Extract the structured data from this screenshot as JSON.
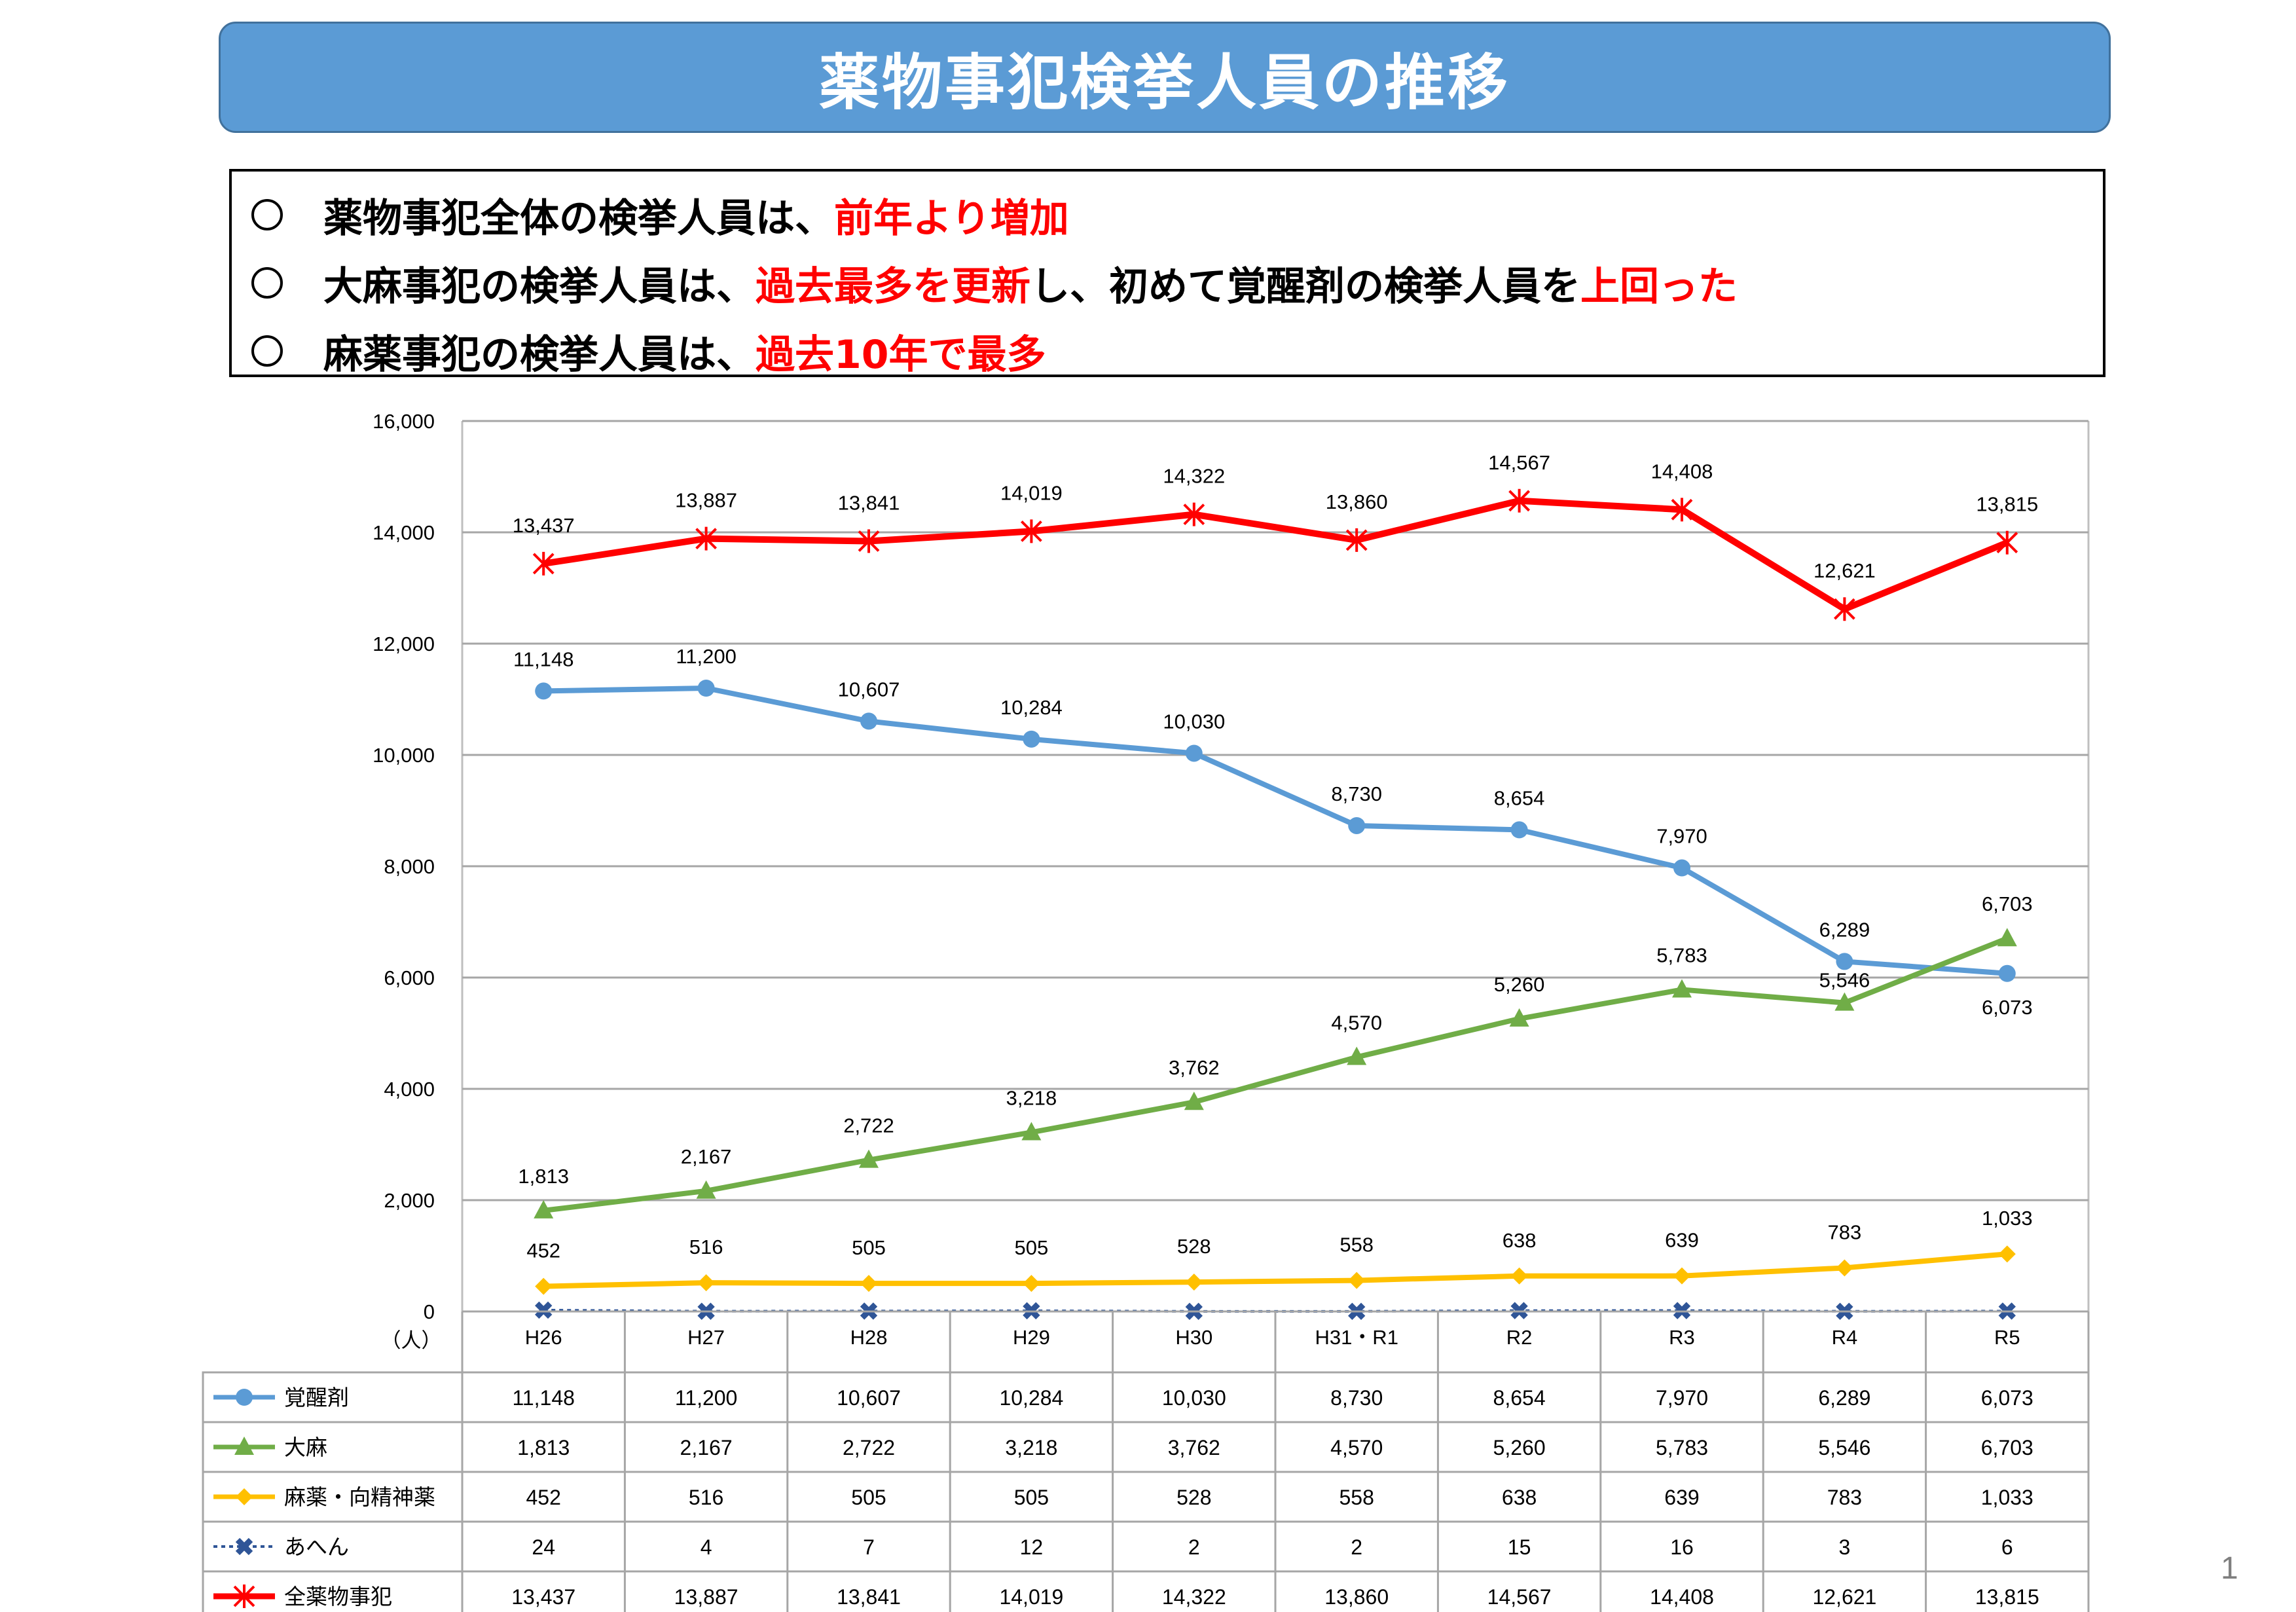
{
  "title": "薬物事犯検挙人員の推移",
  "summary": [
    {
      "parts": [
        {
          "text": "薬物事犯全体の検挙人員は、",
          "emph": false
        },
        {
          "text": "前年より増加",
          "emph": true
        }
      ]
    },
    {
      "parts": [
        {
          "text": "大麻事犯の検挙人員は、",
          "emph": false
        },
        {
          "text": "過去最多を更新",
          "emph": true
        },
        {
          "text": "し、初めて覚醒剤の検挙人員を",
          "emph": false
        },
        {
          "text": "上回った",
          "emph": true
        }
      ]
    },
    {
      "parts": [
        {
          "text": "麻薬事犯の検挙人員は、",
          "emph": false
        },
        {
          "text": "過去10年で最多",
          "emph": true
        }
      ]
    }
  ],
  "page_number": "1",
  "colors": {
    "banner": "#5b9bd5",
    "emphasis": "#ff0000"
  },
  "chart_data": {
    "type": "line",
    "title": "",
    "xlabel": "",
    "ylabel": "（人）",
    "ylim": [
      0,
      16000
    ],
    "yticks": [
      0,
      2000,
      4000,
      6000,
      8000,
      10000,
      12000,
      14000,
      16000
    ],
    "ytick_labels": [
      "0",
      "2,000",
      "4,000",
      "6,000",
      "8,000",
      "10,000",
      "12,000",
      "14,000",
      "16,000"
    ],
    "grid": true,
    "legend": "data-table-left",
    "categories": [
      "H26",
      "H27",
      "H28",
      "H29",
      "H30",
      "H31・R1",
      "R2",
      "R3",
      "R4",
      "R5"
    ],
    "series": [
      {
        "name": "覚醒剤",
        "color": "#5b9bd5",
        "marker": "circle",
        "dash": false,
        "values": [
          11148,
          11200,
          10607,
          10284,
          10030,
          8730,
          8654,
          7970,
          6289,
          6073
        ],
        "labels": [
          "11,148",
          "11,200",
          "10,607",
          "10,284",
          "10,030",
          "8,730",
          "8,654",
          "7,970",
          "6,289",
          "6,073"
        ]
      },
      {
        "name": "大麻",
        "color": "#70ad47",
        "marker": "triangle",
        "dash": false,
        "values": [
          1813,
          2167,
          2722,
          3218,
          3762,
          4570,
          5260,
          5783,
          5546,
          6703
        ],
        "labels": [
          "1,813",
          "2,167",
          "2,722",
          "3,218",
          "3,762",
          "4,570",
          "5,260",
          "5,783",
          "5,546",
          "6,703"
        ]
      },
      {
        "name": "麻薬・向精神薬",
        "color": "#ffc000",
        "marker": "diamond",
        "dash": false,
        "values": [
          452,
          516,
          505,
          505,
          528,
          558,
          638,
          639,
          783,
          1033
        ],
        "labels": [
          "452",
          "516",
          "505",
          "505",
          "528",
          "558",
          "638",
          "639",
          "783",
          "1,033"
        ]
      },
      {
        "name": "あへん",
        "color": "#2f5597",
        "marker": "x",
        "dash": true,
        "values": [
          24,
          4,
          7,
          12,
          2,
          2,
          15,
          16,
          3,
          6
        ],
        "labels": [
          "24",
          "4",
          "7",
          "12",
          "2",
          "2",
          "15",
          "16",
          "3",
          "6"
        ]
      },
      {
        "name": "全薬物事犯",
        "color": "#ff0000",
        "marker": "star",
        "dash": false,
        "values": [
          13437,
          13887,
          13841,
          14019,
          14322,
          13860,
          14567,
          14408,
          12621,
          13815
        ],
        "labels": [
          "13,437",
          "13,887",
          "13,841",
          "14,019",
          "14,322",
          "13,860",
          "14,567",
          "14,408",
          "12,621",
          "13,815"
        ]
      }
    ]
  }
}
